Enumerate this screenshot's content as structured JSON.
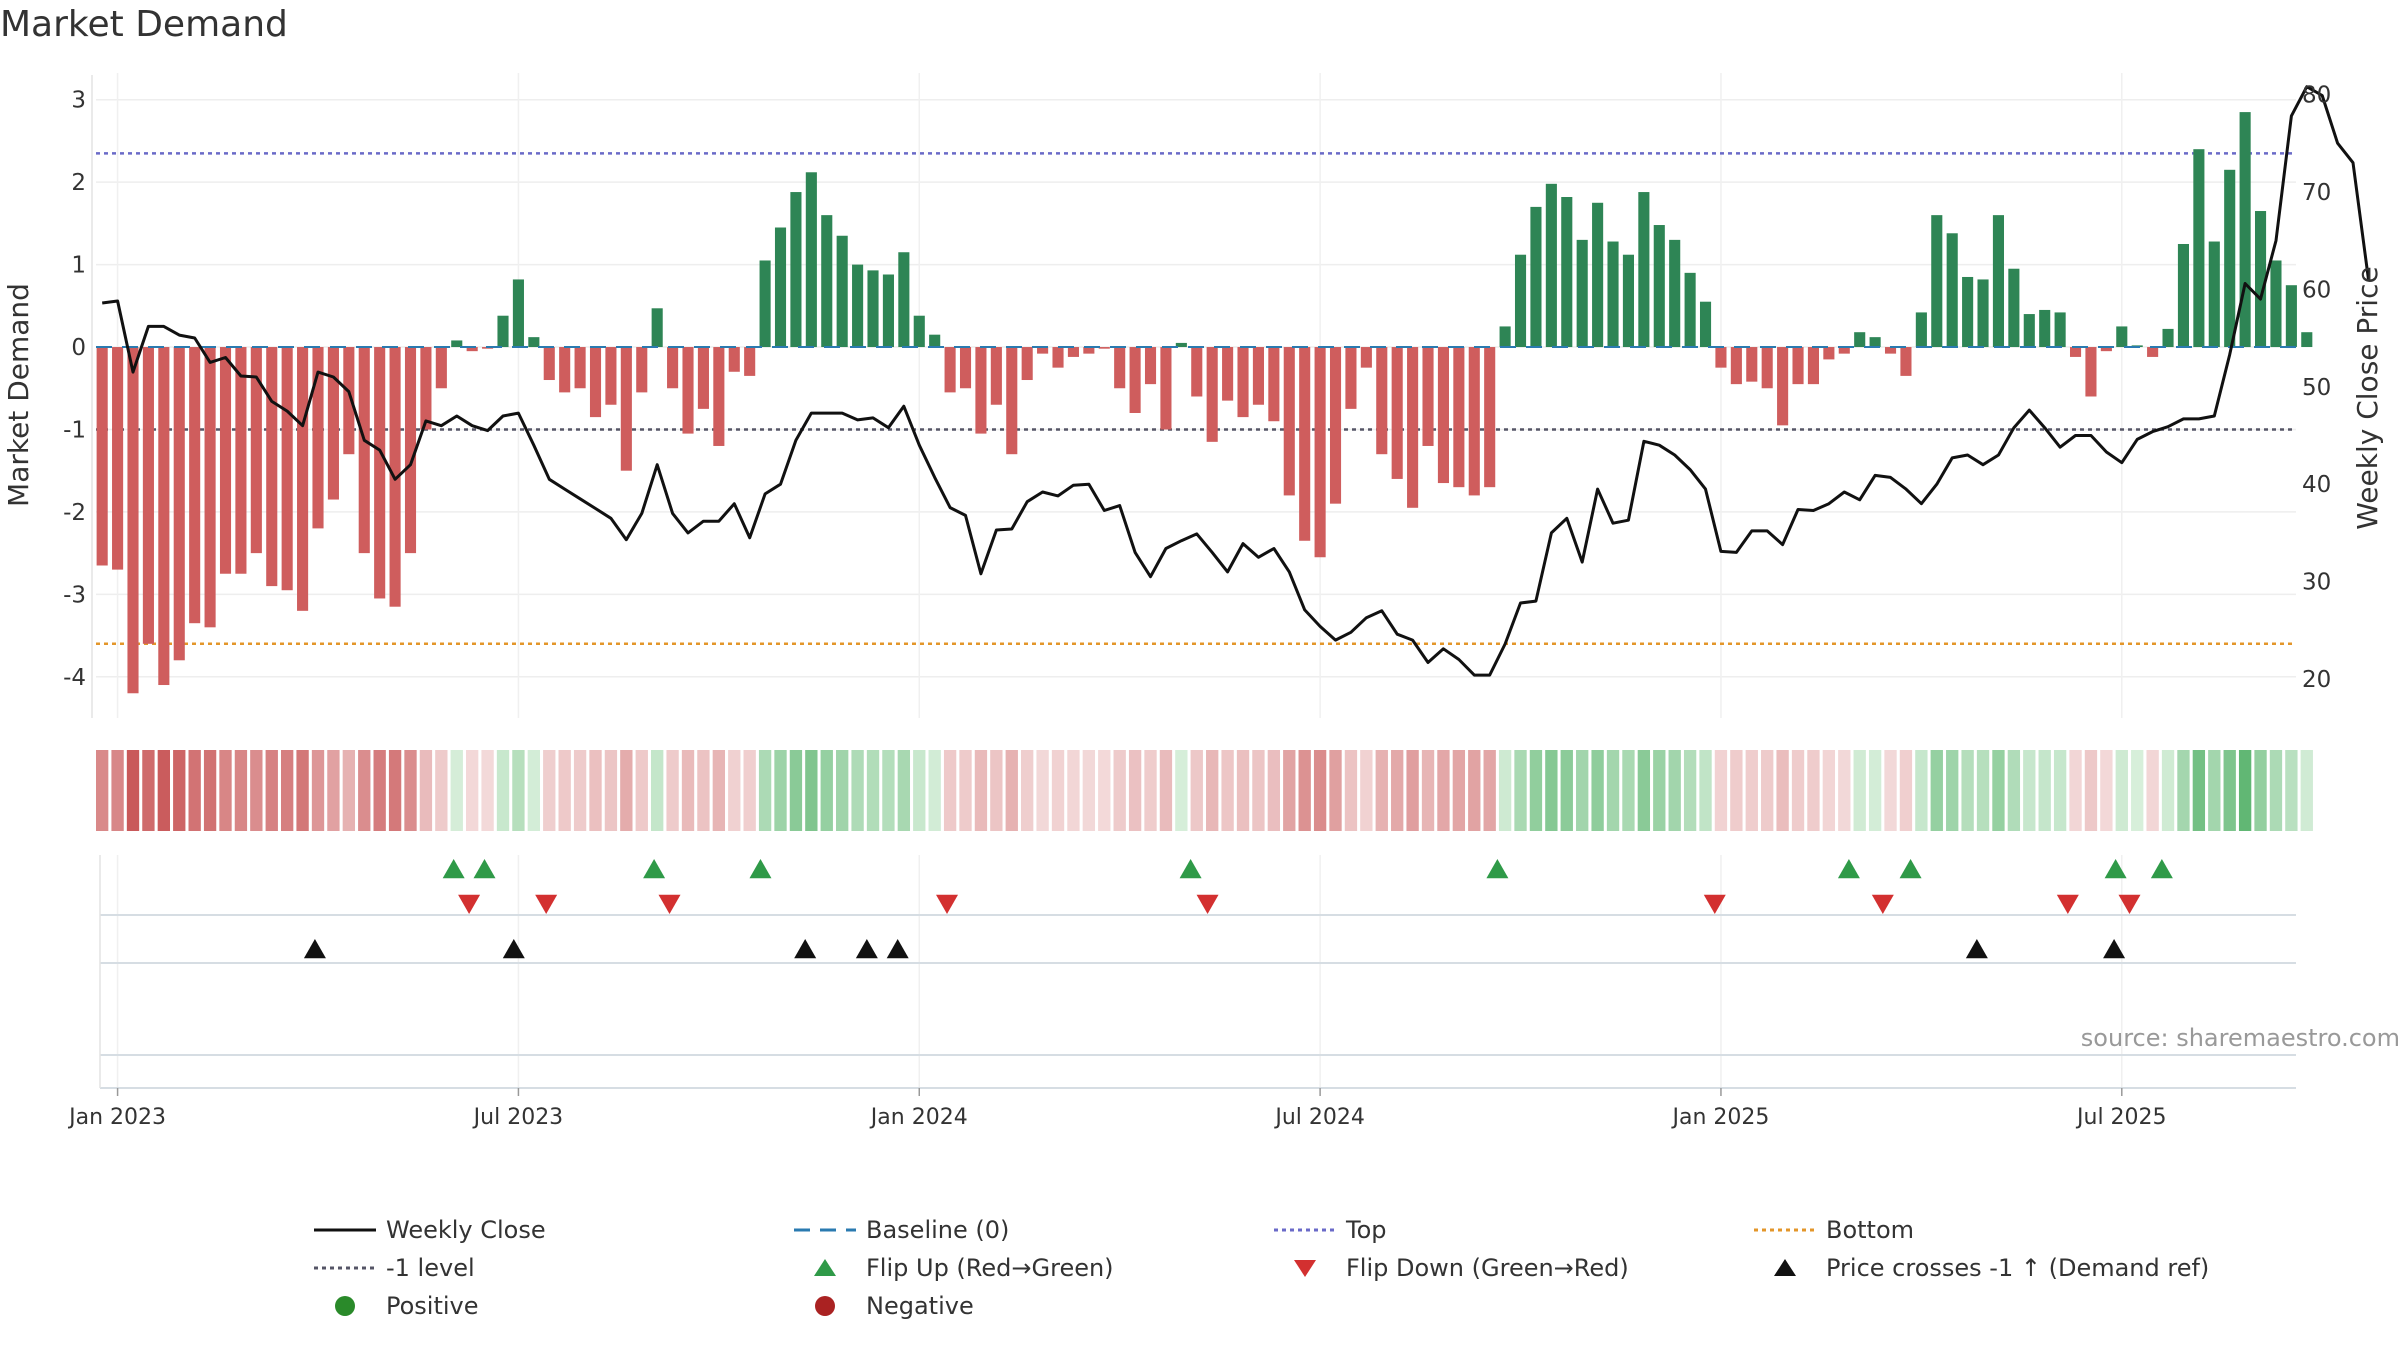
{
  "title": "Market Demand",
  "source": "source: sharemaestro.com",
  "colors": {
    "positive_bar": "#2e8555",
    "negative_bar": "#cf5d5d",
    "price_line": "#111111",
    "top_line": "#6a6ac8",
    "bottom_line": "#e3962a",
    "level_line": "#555566",
    "baseline": "#2a7ab0",
    "flip_up": "#2f9a48",
    "flip_down": "#d33030",
    "cross": "#111111",
    "positive_dot": "#2a8a2a",
    "negative_dot": "#aa2222"
  },
  "legend": [
    {
      "key": "weekly_close",
      "label": "Weekly Close",
      "symbol": "line-solid"
    },
    {
      "key": "baseline",
      "label": "Baseline (0)",
      "symbol": "line-dashed"
    },
    {
      "key": "top",
      "label": "Top",
      "symbol": "line-dotted-top"
    },
    {
      "key": "bottom",
      "label": "Bottom",
      "symbol": "line-dotted-bottom"
    },
    {
      "key": "level",
      "label": "-1 level",
      "symbol": "line-dotted-level"
    },
    {
      "key": "flip_up",
      "label": "Flip Up (Red→Green)",
      "symbol": "tri-up-green"
    },
    {
      "key": "flip_down",
      "label": "Flip Down (Green→Red)",
      "symbol": "tri-down-red"
    },
    {
      "key": "cross",
      "label": "Price crosses -1 ↑ (Demand ref)",
      "symbol": "tri-up-black"
    },
    {
      "key": "positive",
      "label": "Positive",
      "symbol": "dot-green"
    },
    {
      "key": "negative",
      "label": "Negative",
      "symbol": "dot-red"
    }
  ],
  "chart_data": {
    "type": "bar",
    "title": "Market Demand",
    "ylabel": "Market Demand",
    "y2label": "Weekly Close Price",
    "ylim": [
      -4.5,
      3.3
    ],
    "y2lim": [
      16,
      82
    ],
    "yticks": [
      3,
      2,
      1,
      0,
      -1,
      -2,
      -3,
      -4
    ],
    "y2ticks": [
      80,
      70,
      60,
      50,
      40,
      30,
      20
    ],
    "x_start_date": "2022-12-26",
    "x_range_weeks": [
      -0.4,
      142.3
    ],
    "xticks": [
      {
        "label": "Jan 2023",
        "week": 1
      },
      {
        "label": "Jul 2023",
        "week": 27
      },
      {
        "label": "Jan 2024",
        "week": 53
      },
      {
        "label": "Jul 2024",
        "week": 79
      },
      {
        "label": "Jan 2025",
        "week": 105
      },
      {
        "label": "Jul 2025",
        "week": 131
      }
    ],
    "reference_lines": {
      "top": 2.35,
      "bottom": -3.6,
      "level": -1.0,
      "baseline": 0
    },
    "demand": [
      -2.65,
      -2.7,
      -4.2,
      -3.6,
      -4.1,
      -3.8,
      -3.35,
      -3.4,
      -2.75,
      -2.75,
      -2.5,
      -2.9,
      -2.95,
      -3.2,
      -2.2,
      -1.85,
      -1.3,
      -2.5,
      -3.05,
      -3.15,
      -2.5,
      -1.0,
      -0.5,
      0.08,
      -0.05,
      -0.02,
      0.38,
      0.82,
      0.12,
      -0.4,
      -0.55,
      -0.5,
      -0.85,
      -0.7,
      -1.5,
      -0.55,
      0.47,
      -0.5,
      -1.05,
      -0.75,
      -1.2,
      -0.3,
      -0.35,
      1.05,
      1.45,
      1.88,
      2.12,
      1.6,
      1.35,
      1.0,
      0.93,
      0.88,
      1.15,
      0.38,
      0.15,
      -0.55,
      -0.5,
      -1.05,
      -0.7,
      -1.3,
      -0.4,
      -0.08,
      -0.25,
      -0.12,
      -0.08,
      -0.02,
      -0.5,
      -0.8,
      -0.45,
      -1.0,
      0.05,
      -0.6,
      -1.15,
      -0.65,
      -0.85,
      -0.7,
      -0.9,
      -1.8,
      -2.35,
      -2.55,
      -1.9,
      -0.75,
      -0.25,
      -1.3,
      -1.6,
      -1.95,
      -1.2,
      -1.65,
      -1.7,
      -1.8,
      -1.7,
      0.25,
      1.12,
      1.7,
      1.98,
      1.82,
      1.3,
      1.75,
      1.28,
      1.12,
      1.88,
      1.48,
      1.3,
      0.9,
      0.55,
      -0.25,
      -0.45,
      -0.42,
      -0.5,
      -0.95,
      -0.45,
      -0.45,
      -0.15,
      -0.08,
      0.18,
      0.12,
      -0.08,
      -0.35,
      0.42,
      1.6,
      1.38,
      0.85,
      0.82,
      1.6,
      0.95,
      0.4,
      0.45,
      0.42,
      -0.12,
      -0.6,
      -0.05,
      0.25,
      0.02,
      -0.12,
      0.22,
      1.25,
      2.4,
      1.28,
      2.15,
      2.85,
      1.65,
      1.05,
      0.75,
      0.18
    ],
    "price": [
      58.6,
      58.8,
      51.5,
      56.2,
      56.2,
      55.3,
      55,
      52.5,
      53,
      51.1,
      51,
      48.5,
      47.5,
      46,
      51.5,
      51,
      49.5,
      44.5,
      43.5,
      40.5,
      42,
      46.5,
      46,
      47,
      46,
      45.5,
      47,
      47.3,
      44,
      40.5,
      39.5,
      38.5,
      37.5,
      36.5,
      34.3,
      37,
      42,
      37,
      35,
      36.2,
      36.2,
      38,
      34.5,
      39,
      40,
      44.5,
      47.3,
      47.3,
      47.3,
      46.6,
      46.8,
      45.8,
      48,
      44,
      40.7,
      37.6,
      36.8,
      30.8,
      35.3,
      35.4,
      38.2,
      39.2,
      38.8,
      39.9,
      40,
      37.3,
      37.8,
      33,
      30.5,
      33.4,
      34.2,
      34.9,
      33,
      31,
      33.9,
      32.5,
      33.4,
      31,
      27.1,
      25.4,
      24,
      24.8,
      26.3,
      27,
      24.6,
      24,
      21.7,
      23.1,
      22,
      20.4,
      20.4,
      23.6,
      27.8,
      28,
      35,
      36.5,
      32,
      39.5,
      36,
      36.3,
      44.4,
      44,
      43,
      41.5,
      39.5,
      33.1,
      33,
      35.2,
      35.2,
      33.8,
      37.4,
      37.3,
      38,
      39.2,
      38.4,
      40.9,
      40.7,
      39.5,
      38,
      40,
      42.7,
      43,
      42,
      43,
      45.8,
      47.6,
      45.8,
      43.8,
      45,
      45,
      43.3,
      42.2,
      44.6,
      45.4,
      45.9,
      46.7,
      46.7,
      47,
      53.3,
      60.6,
      59,
      65,
      77.8,
      80.8,
      79.9,
      75,
      73,
      61
    ]
  },
  "markers": {
    "flip_up_weeks": [
      22.8,
      24.8,
      35.8,
      42.7,
      70.6,
      90.5,
      113.3,
      117.3,
      130.6,
      133.6
    ],
    "flip_down_weeks": [
      23.8,
      28.8,
      36.8,
      54.8,
      71.7,
      104.6,
      115.5,
      127.5,
      131.5
    ],
    "cross_weeks": [
      13.8,
      26.7,
      45.6,
      49.6,
      51.6,
      121.6,
      130.5
    ]
  }
}
